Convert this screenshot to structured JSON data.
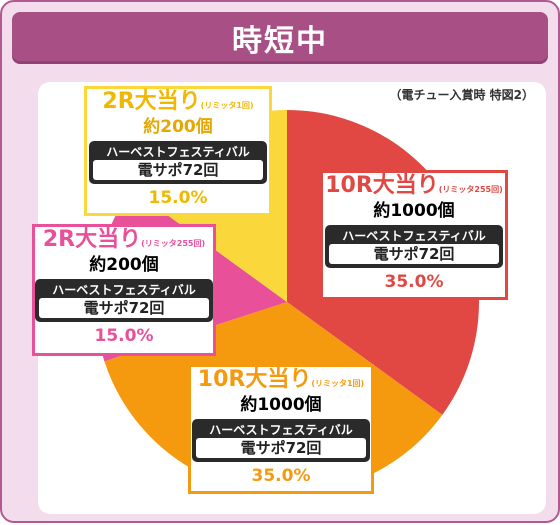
{
  "header": {
    "title": "時短中"
  },
  "note": "（電チュー入賞時 特図2）",
  "colors": {
    "red": "#e24843",
    "orange": "#f59a0e",
    "pink": "#e8509a",
    "yellow": "#fad83c"
  },
  "chart_data": {
    "type": "pie",
    "title": "時短中",
    "subtitle": "（電チュー入賞時 特図2）",
    "slices": [
      {
        "label": "10R大当り",
        "limit": "(リミッタ255回)",
        "prize": "約1000個",
        "line1": "ハーベストフェスティバル",
        "line2": "電サポ72回",
        "value": 35.0,
        "percent_text": "35.0%",
        "color": "#e24843"
      },
      {
        "label": "10R大当り",
        "limit": "(リミッタ1回)",
        "prize": "約1000個",
        "line1": "ハーベストフェスティバル",
        "line2": "電サポ72回",
        "value": 35.0,
        "percent_text": "35.0%",
        "color": "#f59a0e"
      },
      {
        "label": "2R大当り",
        "limit": "(リミッタ255回)",
        "prize": "約200個",
        "line1": "ハーベストフェスティバル",
        "line2": "電サポ72回",
        "value": 15.0,
        "percent_text": "15.0%",
        "color": "#e8509a"
      },
      {
        "label": "2R大当り",
        "limit": "(リミッタ1回)",
        "prize": "約200個",
        "line1": "ハーベストフェスティバル",
        "line2": "電サポ72回",
        "value": 15.0,
        "percent_text": "15.0%",
        "color": "#fad83c"
      }
    ]
  }
}
